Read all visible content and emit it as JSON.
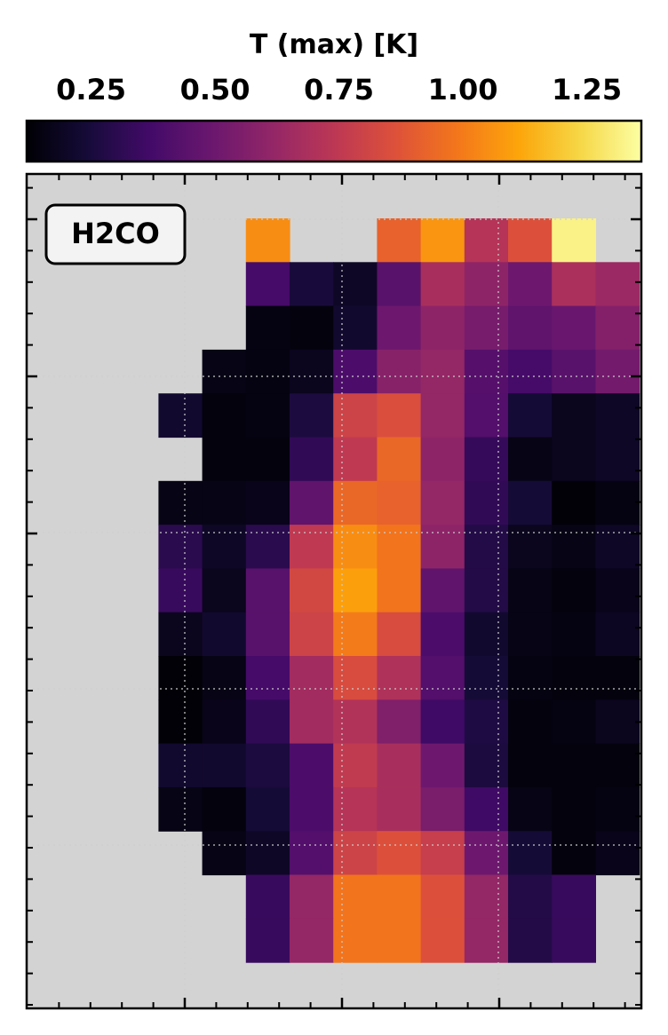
{
  "chart_data": {
    "type": "heatmap",
    "title": "",
    "xlabel": "",
    "ylabel": "",
    "annotation": "H2CO",
    "colorbar": {
      "label": "T (max) [K]",
      "colormap": "inferno",
      "range": [
        0.12,
        1.36
      ],
      "ticks": [
        0.25,
        0.5,
        0.75,
        1.0,
        1.25
      ],
      "tick_labels": [
        "0.25",
        "0.50",
        "0.75",
        "1.00",
        "1.25"
      ],
      "location": "top"
    },
    "grid": true,
    "background_color": "#d3d3d3",
    "n_cols": 13,
    "n_rows": 17,
    "values": [
      [
        null,
        null,
        null,
        null,
        1.05,
        null,
        null,
        0.92,
        1.07,
        0.72,
        0.86,
        1.32,
        null
      ],
      [
        null,
        null,
        null,
        null,
        0.38,
        0.25,
        0.2,
        0.44,
        0.68,
        0.6,
        0.5,
        0.69,
        0.64
      ],
      [
        null,
        null,
        null,
        null,
        0.15,
        0.14,
        0.22,
        0.5,
        0.6,
        0.53,
        0.46,
        0.49,
        0.57
      ],
      [
        null,
        null,
        null,
        0.16,
        0.15,
        0.18,
        0.4,
        0.58,
        0.62,
        0.43,
        0.38,
        0.44,
        0.52
      ],
      [
        null,
        null,
        0.22,
        0.14,
        0.15,
        0.26,
        0.8,
        0.85,
        0.62,
        0.42,
        0.24,
        0.18,
        0.2
      ],
      [
        null,
        null,
        null,
        0.14,
        0.14,
        0.32,
        0.75,
        0.94,
        0.6,
        0.33,
        0.16,
        0.18,
        0.2
      ],
      [
        null,
        null,
        0.16,
        0.16,
        0.17,
        0.46,
        0.94,
        0.92,
        0.62,
        0.32,
        0.24,
        0.13,
        0.15
      ],
      [
        null,
        null,
        0.3,
        0.2,
        0.3,
        0.75,
        1.05,
        0.98,
        0.6,
        0.28,
        0.18,
        0.16,
        0.2
      ],
      [
        null,
        null,
        0.34,
        0.18,
        0.44,
        0.82,
        1.1,
        0.98,
        0.46,
        0.28,
        0.16,
        0.14,
        0.17
      ],
      [
        null,
        null,
        0.18,
        0.22,
        0.44,
        0.8,
        1.0,
        0.84,
        0.4,
        0.22,
        0.16,
        0.15,
        0.19
      ],
      [
        null,
        null,
        0.13,
        0.16,
        0.38,
        0.66,
        0.84,
        0.7,
        0.42,
        0.24,
        0.15,
        0.14,
        0.14
      ],
      [
        null,
        null,
        0.13,
        0.17,
        0.32,
        0.66,
        0.71,
        0.56,
        0.36,
        0.27,
        0.14,
        0.15,
        0.18
      ],
      [
        null,
        null,
        0.22,
        0.22,
        0.26,
        0.4,
        0.76,
        0.68,
        0.5,
        0.26,
        0.14,
        0.14,
        0.14
      ],
      [
        null,
        null,
        0.16,
        0.14,
        0.24,
        0.4,
        0.72,
        0.68,
        0.54,
        0.36,
        0.16,
        0.14,
        0.15
      ],
      [
        null,
        null,
        null,
        0.16,
        0.2,
        0.42,
        0.8,
        0.86,
        0.78,
        0.5,
        0.24,
        0.14,
        0.17
      ],
      [
        null,
        null,
        null,
        null,
        0.34,
        0.62,
        0.98,
        0.98,
        0.86,
        0.62,
        0.28,
        0.34,
        null
      ],
      [
        null,
        null,
        null,
        null,
        0.34,
        0.62,
        0.98,
        0.98,
        0.86,
        0.62,
        0.28,
        0.34,
        null
      ]
    ]
  }
}
